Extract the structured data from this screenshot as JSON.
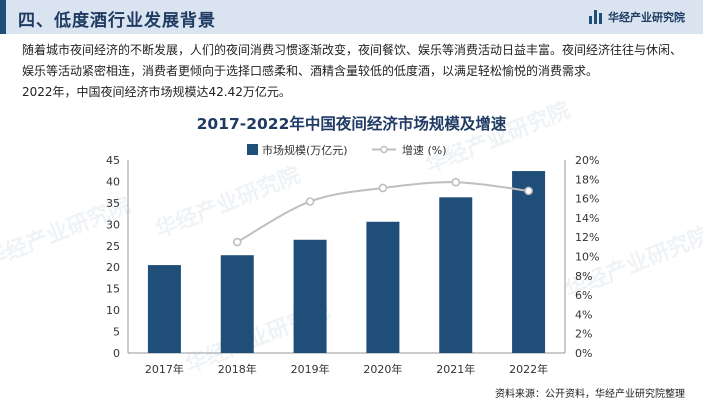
{
  "header": {
    "title": "四、低度酒行业发展背景",
    "brand": "华经产业研究院"
  },
  "intro": {
    "paragraph1": "随着城市夜间经济的不断发展，人们的夜间消费习惯逐渐改变，夜间餐饮、娱乐等消费活动日益丰富。夜间经济往往与休闲、娱乐等活动紧密相连，消费者更倾向于选择口感柔和、酒精含量较低的低度酒，以满足轻松愉悦的消费需求。",
    "paragraph2": "2022年，中国夜间经济市场规模达42.42万亿元。"
  },
  "watermark_text": "华经产业研究院",
  "source": "资料来源：公开资料，华经产业研究院整理",
  "colors": {
    "bar": "#1f4e79",
    "line": "#bfbfbf",
    "title": "#1f3b63"
  },
  "chart_data": {
    "type": "bar",
    "title": "2017-2022年中国夜间经济市场规模及增速",
    "categories": [
      "2017年",
      "2018年",
      "2019年",
      "2020年",
      "2021年",
      "2022年"
    ],
    "series": [
      {
        "name": "市场规模(万亿元)",
        "type": "bar",
        "axis": "left",
        "values": [
          20.5,
          22.8,
          26.4,
          30.6,
          36.3,
          42.42
        ]
      },
      {
        "name": "增速 (%)",
        "type": "line",
        "axis": "right",
        "values": [
          null,
          11.5,
          15.7,
          17.1,
          17.7,
          16.8
        ]
      }
    ],
    "y_left": {
      "min": 0,
      "max": 45,
      "step": 5,
      "ticks": [
        "0",
        "5",
        "10",
        "15",
        "20",
        "25",
        "30",
        "35",
        "40",
        "45"
      ]
    },
    "y_right": {
      "min": 0,
      "max": 20,
      "step": 2,
      "ticks": [
        "0%",
        "2%",
        "4%",
        "6%",
        "8%",
        "10%",
        "12%",
        "14%",
        "16%",
        "18%",
        "20%"
      ]
    },
    "legend_position": "top-center",
    "grid": false
  }
}
